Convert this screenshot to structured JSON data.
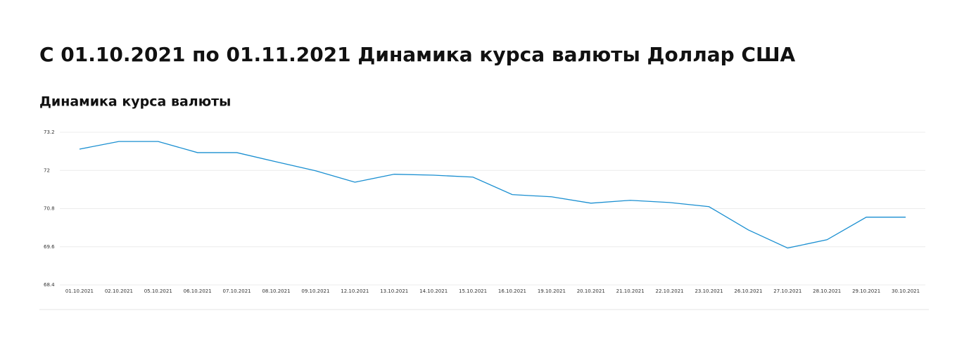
{
  "page_title": "С 01.10.2021 по 01.11.2021 Динамика курса валюты Доллар США",
  "chart_data": {
    "type": "line",
    "title": "Динамика курса валюты",
    "categories": [
      "01.10.2021",
      "02.10.2021",
      "05.10.2021",
      "06.10.2021",
      "07.10.2021",
      "08.10.2021",
      "09.10.2021",
      "12.10.2021",
      "13.10.2021",
      "14.10.2021",
      "15.10.2021",
      "16.10.2021",
      "19.10.2021",
      "20.10.2021",
      "21.10.2021",
      "22.10.2021",
      "23.10.2021",
      "26.10.2021",
      "27.10.2021",
      "28.10.2021",
      "29.10.2021",
      "30.10.2021"
    ],
    "values": [
      72.67,
      72.91,
      72.91,
      72.56,
      72.56,
      72.27,
      71.99,
      71.63,
      71.88,
      71.85,
      71.79,
      71.24,
      71.17,
      70.97,
      71.06,
      70.99,
      70.86,
      70.13,
      69.56,
      69.82,
      70.53,
      70.53
    ],
    "color": "#1a8fd1",
    "ylim": [
      68.4,
      73.2
    ],
    "yticks": [
      68.4,
      69.6,
      70.8,
      72,
      73.2
    ],
    "grid": true
  }
}
